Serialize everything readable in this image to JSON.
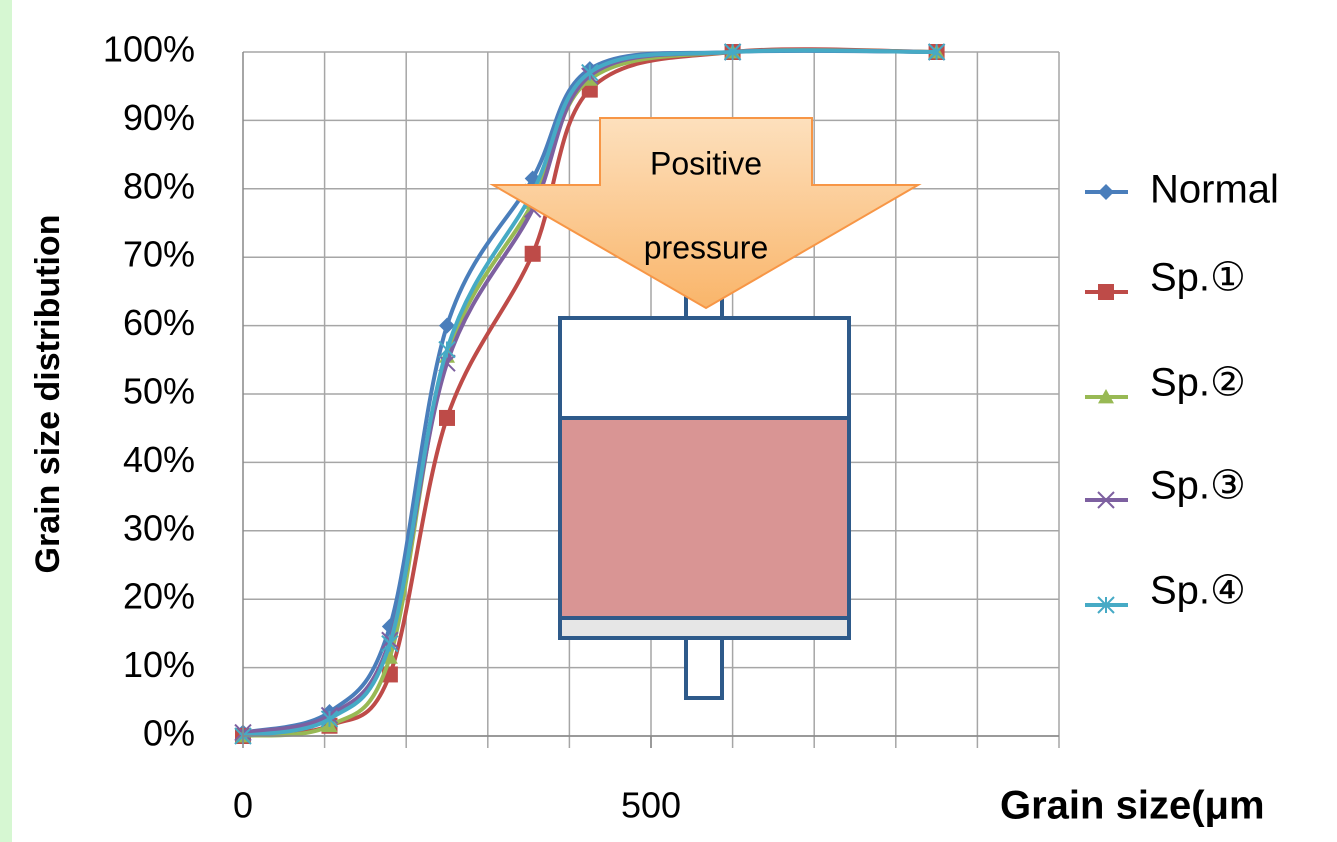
{
  "chart_data": {
    "type": "line",
    "x_label": "Grain size(μm",
    "y_label": "Grain size distribution",
    "annotation_lines": [
      "Positive",
      "pressure"
    ],
    "x": [
      0,
      106,
      180,
      250,
      355,
      425,
      600,
      850
    ],
    "series": [
      {
        "name": "Normal",
        "color": "#4a7ebb",
        "marker": "diamond",
        "values": [
          0.5,
          3.5,
          16,
          60,
          81.5,
          97.5,
          100,
          100
        ]
      },
      {
        "name": "Sp.①",
        "color": "#be4b48",
        "marker": "square",
        "values": [
          0,
          1.5,
          9,
          46.5,
          70.5,
          94.5,
          100,
          100
        ]
      },
      {
        "name": "Sp.②",
        "color": "#98b954",
        "marker": "triangle",
        "values": [
          0,
          1.5,
          11.5,
          55.5,
          78,
          96,
          100,
          100
        ]
      },
      {
        "name": "Sp.③",
        "color": "#7d60a0",
        "marker": "x",
        "values": [
          0.5,
          3,
          14,
          54.5,
          77,
          96.5,
          100,
          100
        ]
      },
      {
        "name": "Sp.④",
        "color": "#46aac5",
        "marker": "star",
        "values": [
          0,
          2.5,
          13.5,
          56.5,
          79.5,
          97,
          100,
          100
        ]
      }
    ],
    "xlim": [
      0,
      1000
    ],
    "xticks": [
      0,
      500
    ],
    "x_grid": [
      100,
      200,
      300,
      400,
      500,
      600,
      700,
      800,
      900,
      1000
    ],
    "ylim": [
      0,
      100
    ],
    "yticks": [
      {
        "value": 0,
        "label": "0%"
      },
      {
        "value": 10,
        "label": "10%"
      },
      {
        "value": 20,
        "label": "20%"
      },
      {
        "value": 30,
        "label": "30%"
      },
      {
        "value": 40,
        "label": "40%"
      },
      {
        "value": 50,
        "label": "50%"
      },
      {
        "value": 60,
        "label": "60%"
      },
      {
        "value": 70,
        "label": "70%"
      },
      {
        "value": 80,
        "label": "80%"
      },
      {
        "value": 90,
        "label": "90%"
      },
      {
        "value": 100,
        "label": "100%"
      }
    ],
    "grid": true
  }
}
